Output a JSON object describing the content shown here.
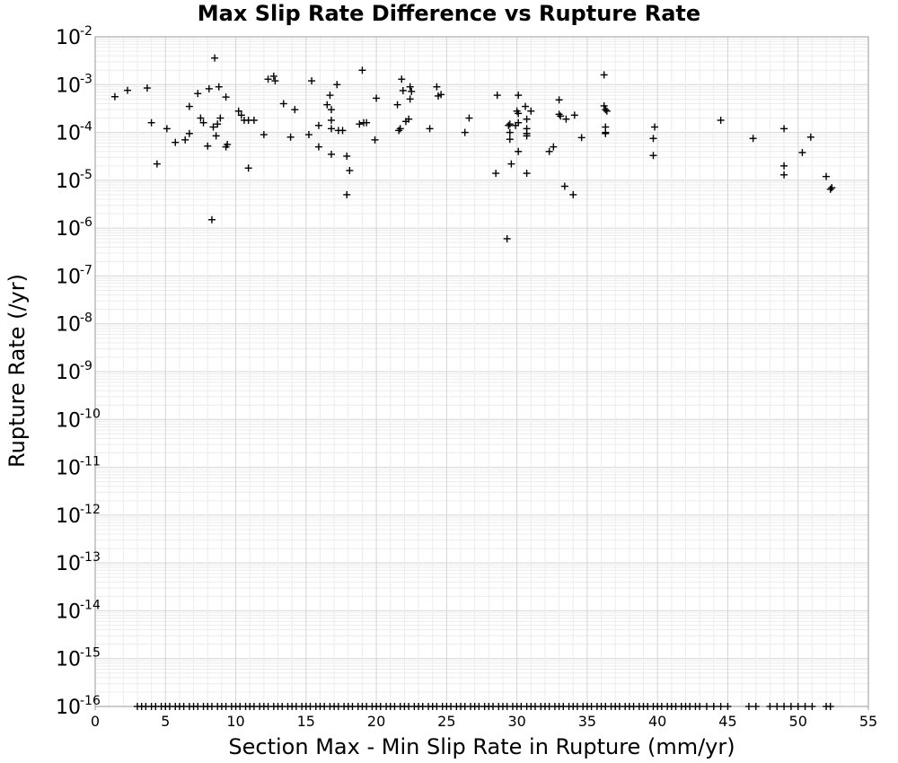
{
  "chart_data": {
    "type": "scatter",
    "title": "Max Slip Rate Difference vs Rupture Rate",
    "xlabel": "Section Max - Min Slip Rate in Rupture (mm/yr)",
    "ylabel": "Rupture Rate (/yr)",
    "xlim": [
      0,
      55
    ],
    "ylim": [
      1e-16,
      0.01
    ],
    "y_scale": "log",
    "grid": true,
    "x_ticks": [
      "0",
      "5",
      "10",
      "15",
      "20",
      "25",
      "30",
      "35",
      "40",
      "45",
      "50",
      "55"
    ],
    "y_ticks": [
      {
        "base": "10",
        "exp": "-2"
      },
      {
        "base": "10",
        "exp": "-3"
      },
      {
        "base": "10",
        "exp": "-4"
      },
      {
        "base": "10",
        "exp": "-5"
      },
      {
        "base": "10",
        "exp": "-6"
      },
      {
        "base": "10",
        "exp": "-7"
      },
      {
        "base": "10",
        "exp": "-8"
      },
      {
        "base": "10",
        "exp": "-9"
      },
      {
        "base": "10",
        "exp": "-10"
      },
      {
        "base": "10",
        "exp": "-11"
      },
      {
        "base": "10",
        "exp": "-12"
      },
      {
        "base": "10",
        "exp": "-13"
      },
      {
        "base": "10",
        "exp": "-14"
      },
      {
        "base": "10",
        "exp": "-15"
      },
      {
        "base": "10",
        "exp": "-16"
      }
    ],
    "marker": "+",
    "marker_color": "#000000",
    "points": [
      [
        1.4,
        0.00056
      ],
      [
        2.3,
        0.00076
      ],
      [
        3.7,
        0.00085
      ],
      [
        4.0,
        0.00016
      ],
      [
        4.4,
        2.2e-05
      ],
      [
        5.1,
        0.00012
      ],
      [
        5.7,
        6.2e-05
      ],
      [
        6.4,
        7e-05
      ],
      [
        6.7,
        9.5e-05
      ],
      [
        6.7,
        0.00035
      ],
      [
        7.3,
        0.00065
      ],
      [
        7.5,
        0.0002
      ],
      [
        7.7,
        0.00016
      ],
      [
        8.0,
        5.2e-05
      ],
      [
        8.1,
        0.00082
      ],
      [
        8.3,
        1.5e-06
      ],
      [
        8.4,
        0.00013
      ],
      [
        8.5,
        0.0036
      ],
      [
        8.6,
        8.5e-05
      ],
      [
        8.7,
        0.00015
      ],
      [
        8.8,
        0.0009
      ],
      [
        8.9,
        0.0002
      ],
      [
        9.3,
        0.00055
      ],
      [
        9.3,
        5e-05
      ],
      [
        9.4,
        5.6e-05
      ],
      [
        10.2,
        0.00028
      ],
      [
        10.4,
        0.00023
      ],
      [
        10.6,
        0.00018
      ],
      [
        10.9,
        1.8e-05
      ],
      [
        10.9,
        0.00018
      ],
      [
        11.3,
        0.00018
      ],
      [
        12.0,
        9e-05
      ],
      [
        12.3,
        0.0013
      ],
      [
        12.7,
        0.0015
      ],
      [
        12.8,
        0.0012
      ],
      [
        13.4,
        0.0004
      ],
      [
        13.9,
        8e-05
      ],
      [
        14.2,
        0.0003
      ],
      [
        15.2,
        9e-05
      ],
      [
        15.4,
        0.0012
      ],
      [
        15.9,
        0.00014
      ],
      [
        15.9,
        5e-05
      ],
      [
        16.5,
        0.00038
      ],
      [
        16.7,
        0.0006
      ],
      [
        16.8,
        0.00018
      ],
      [
        16.8,
        0.0003
      ],
      [
        16.8,
        0.00012
      ],
      [
        16.8,
        3.5e-05
      ],
      [
        17.2,
        0.001
      ],
      [
        17.3,
        0.00011
      ],
      [
        17.6,
        0.00011
      ],
      [
        17.9,
        5e-06
      ],
      [
        17.9,
        3.2e-05
      ],
      [
        18.1,
        1.6e-05
      ],
      [
        18.8,
        0.00015
      ],
      [
        19.0,
        0.002
      ],
      [
        19.1,
        0.00016
      ],
      [
        19.3,
        0.00016
      ],
      [
        19.9,
        7e-05
      ],
      [
        20.0,
        0.00052
      ],
      [
        21.5,
        0.00038
      ],
      [
        21.6,
        0.00011
      ],
      [
        21.7,
        0.00012
      ],
      [
        21.8,
        0.0013
      ],
      [
        21.9,
        0.00075
      ],
      [
        22.1,
        0.00017
      ],
      [
        22.3,
        0.00019
      ],
      [
        22.4,
        0.0009
      ],
      [
        22.4,
        0.0005
      ],
      [
        22.5,
        0.00072
      ],
      [
        23.8,
        0.00012
      ],
      [
        24.3,
        0.0009
      ],
      [
        24.4,
        0.00058
      ],
      [
        24.6,
        0.00062
      ],
      [
        26.3,
        0.0001
      ],
      [
        26.6,
        0.0002
      ],
      [
        28.5,
        1.4e-05
      ],
      [
        28.6,
        0.0006
      ],
      [
        29.3,
        6e-07
      ],
      [
        29.4,
        0.00014
      ],
      [
        29.5,
        0.00015
      ],
      [
        29.5,
        7.2e-05
      ],
      [
        29.5,
        0.0001
      ],
      [
        29.6,
        2.2e-05
      ],
      [
        29.9,
        0.00014
      ],
      [
        30.0,
        0.00028
      ],
      [
        30.1,
        0.00025
      ],
      [
        30.1,
        0.0006
      ],
      [
        30.1,
        0.00016
      ],
      [
        30.1,
        4e-05
      ],
      [
        30.6,
        0.00035
      ],
      [
        30.7,
        1.4e-05
      ],
      [
        30.7,
        0.00019
      ],
      [
        30.7,
        0.00012
      ],
      [
        30.7,
        9.5e-05
      ],
      [
        30.7,
        8.5e-05
      ],
      [
        31.0,
        0.00028
      ],
      [
        32.3,
        4e-05
      ],
      [
        32.6,
        5e-05
      ],
      [
        33.0,
        0.00048
      ],
      [
        33.0,
        0.00024
      ],
      [
        33.1,
        0.00022
      ],
      [
        33.5,
        0.00019
      ],
      [
        33.4,
        7.5e-06
      ],
      [
        34.0,
        5e-06
      ],
      [
        34.1,
        0.00023
      ],
      [
        34.6,
        7.8e-05
      ],
      [
        36.2,
        0.0016
      ],
      [
        36.2,
        0.00036
      ],
      [
        36.3,
        0.0003
      ],
      [
        36.4,
        0.00028
      ],
      [
        36.3,
        0.00013
      ],
      [
        36.3,
        0.0001
      ],
      [
        36.3,
        9.5e-05
      ],
      [
        39.8,
        0.00013
      ],
      [
        39.7,
        7.5e-05
      ],
      [
        39.7,
        3.3e-05
      ],
      [
        44.5,
        0.00018
      ],
      [
        46.8,
        7.5e-05
      ],
      [
        49.0,
        0.00012
      ],
      [
        49.0,
        2e-05
      ],
      [
        49.0,
        1.3e-05
      ],
      [
        50.3,
        3.8e-05
      ],
      [
        50.9,
        8e-05
      ],
      [
        52.0,
        1.2e-05
      ],
      [
        52.3,
        6.5e-06
      ],
      [
        52.4,
        7e-06
      ]
    ],
    "floor_points_x": [
      3.0,
      3.3,
      3.6,
      4.0,
      4.3,
      4.7,
      5.0,
      5.3,
      5.7,
      6.0,
      6.3,
      6.7,
      7.0,
      7.3,
      7.7,
      8.0,
      8.3,
      8.7,
      9.0,
      9.3,
      9.7,
      10.0,
      10.3,
      10.7,
      11.0,
      11.3,
      11.7,
      12.0,
      12.3,
      12.7,
      13.0,
      13.3,
      13.7,
      14.0,
      14.3,
      14.7,
      15.0,
      15.3,
      15.7,
      16.0,
      16.3,
      16.7,
      17.0,
      17.3,
      17.7,
      18.0,
      18.3,
      18.7,
      19.0,
      19.3,
      19.7,
      20.0,
      20.3,
      20.7,
      21.0,
      21.3,
      21.7,
      22.0,
      22.3,
      22.7,
      23.0,
      23.3,
      23.7,
      24.0,
      24.3,
      24.7,
      25.0,
      25.3,
      25.7,
      26.0,
      26.3,
      26.7,
      27.0,
      27.3,
      27.7,
      28.0,
      28.3,
      28.7,
      29.0,
      29.3,
      29.7,
      30.0,
      30.3,
      30.7,
      31.0,
      31.3,
      31.7,
      32.0,
      32.3,
      32.7,
      33.0,
      33.3,
      33.7,
      34.0,
      34.3,
      34.7,
      35.0,
      35.3,
      35.7,
      36.0,
      36.3,
      36.7,
      37.0,
      37.3,
      37.7,
      38.0,
      38.3,
      38.7,
      39.0,
      39.3,
      39.7,
      40.0,
      40.3,
      40.7,
      41.0,
      41.3,
      41.7,
      42.0,
      42.3,
      42.7,
      43.0,
      43.5,
      44.0,
      44.5,
      45.0,
      46.5,
      47.0,
      48.0,
      48.5,
      49.0,
      49.5,
      50.0,
      50.5,
      51.0,
      52.0,
      52.3
    ],
    "floor_value": 1e-16
  }
}
